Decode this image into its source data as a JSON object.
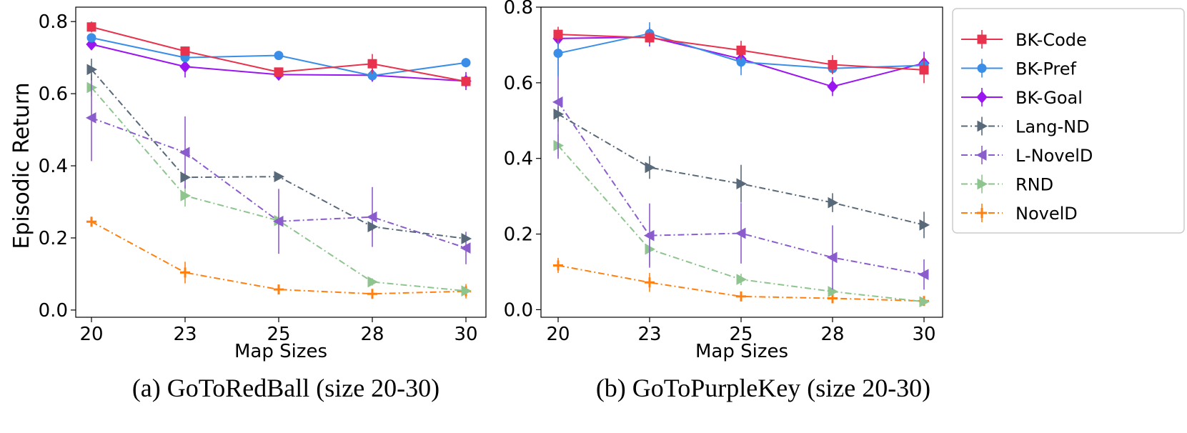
{
  "chart_data": [
    {
      "type": "line",
      "caption": "(a) GoToRedBall (size 20-30)",
      "xlabel": "Map Sizes",
      "ylabel": "Episodic Return",
      "categories": [
        "20",
        "23",
        "25",
        "28",
        "30"
      ],
      "ylim": [
        -0.02,
        0.84
      ],
      "yticks": [
        "0.0",
        "0.2",
        "0.4",
        "0.6",
        "0.8"
      ],
      "series": [
        {
          "name": "BK-Code",
          "values": [
            0.785,
            0.718,
            0.66,
            0.683,
            0.634
          ],
          "err": [
            0.015,
            0.013,
            0.008,
            0.027,
            0.01
          ]
        },
        {
          "name": "BK-Pref",
          "values": [
            0.755,
            0.7,
            0.706,
            0.65,
            0.686
          ],
          "err": [
            0.01,
            0.008,
            0.007,
            0.01,
            0.013
          ]
        },
        {
          "name": "BK-Goal",
          "values": [
            0.737,
            0.675,
            0.653,
            0.651,
            0.635
          ],
          "err": [
            0.015,
            0.03,
            0.008,
            0.018,
            0.025
          ]
        },
        {
          "name": "Lang-ND",
          "values": [
            0.667,
            0.368,
            0.37,
            0.231,
            0.198
          ],
          "err": [
            0.03,
            0.01,
            0.008,
            0.01,
            0.008
          ]
        },
        {
          "name": "L-NovelD",
          "values": [
            0.533,
            0.437,
            0.246,
            0.258,
            0.172
          ],
          "err": [
            0.12,
            0.1,
            0.09,
            0.083,
            0.045
          ]
        },
        {
          "name": "RND",
          "values": [
            0.617,
            0.317,
            0.248,
            0.078,
            0.053
          ],
          "err": [
            0.025,
            0.03,
            0.012,
            0.01,
            0.005
          ]
        },
        {
          "name": "NovelD",
          "values": [
            0.245,
            0.104,
            0.057,
            0.045,
            0.052
          ],
          "err": [
            0.01,
            0.03,
            0.01,
            0.012,
            0.02
          ]
        }
      ]
    },
    {
      "type": "line",
      "caption": "(b) GoToPurpleKey (size 20-30)",
      "xlabel": "Map Sizes",
      "ylabel": "",
      "categories": [
        "20",
        "23",
        "25",
        "28",
        "30"
      ],
      "ylim": [
        -0.02,
        0.8
      ],
      "yticks": [
        "0.0",
        "0.2",
        "0.4",
        "0.6",
        "0.8"
      ],
      "series": [
        {
          "name": "BK-Code",
          "values": [
            0.728,
            0.719,
            0.686,
            0.648,
            0.634
          ],
          "err": [
            0.02,
            0.015,
            0.025,
            0.025,
            0.035
          ]
        },
        {
          "name": "BK-Pref",
          "values": [
            0.678,
            0.73,
            0.655,
            0.638,
            0.646
          ],
          "err": [
            0.06,
            0.03,
            0.035,
            0.015,
            0.015
          ]
        },
        {
          "name": "BK-Goal",
          "values": [
            0.717,
            0.721,
            0.663,
            0.59,
            0.652
          ],
          "err": [
            0.02,
            0.025,
            0.025,
            0.025,
            0.03
          ]
        },
        {
          "name": "Lang-ND",
          "values": [
            0.517,
            0.376,
            0.333,
            0.283,
            0.224
          ],
          "err": [
            0.02,
            0.03,
            0.05,
            0.025,
            0.035
          ]
        },
        {
          "name": "L-NovelD",
          "values": [
            0.549,
            0.196,
            0.202,
            0.138,
            0.093
          ],
          "err": [
            0.15,
            0.085,
            0.08,
            0.085,
            0.04
          ]
        },
        {
          "name": "RND",
          "values": [
            0.434,
            0.16,
            0.08,
            0.048,
            0.021
          ],
          "err": [
            0.03,
            0.045,
            0.015,
            0.01,
            0.005
          ]
        },
        {
          "name": "NovelD",
          "values": [
            0.117,
            0.072,
            0.035,
            0.03,
            0.023
          ],
          "err": [
            0.02,
            0.025,
            0.008,
            0.008,
            0.008
          ]
        }
      ]
    }
  ],
  "legend": {
    "placement": "right",
    "entries": [
      {
        "name": "BK-Code",
        "color": "#e8324e",
        "marker": "square",
        "dash": "solid"
      },
      {
        "name": "BK-Pref",
        "color": "#3a8ee8",
        "marker": "circle",
        "dash": "solid"
      },
      {
        "name": "BK-Goal",
        "color": "#9a16f0",
        "marker": "diamond",
        "dash": "solid"
      },
      {
        "name": "Lang-ND",
        "color": "#58697a",
        "marker": "triangle-right",
        "dash": "dashdot"
      },
      {
        "name": "L-NovelD",
        "color": "#8a5ccc",
        "marker": "triangle-left",
        "dash": "dashdot"
      },
      {
        "name": "RND",
        "color": "#8ec48e",
        "marker": "triangle-right",
        "dash": "dashdot"
      },
      {
        "name": "NovelD",
        "color": "#ff8010",
        "marker": "plus",
        "dash": "dashdot"
      }
    ]
  }
}
